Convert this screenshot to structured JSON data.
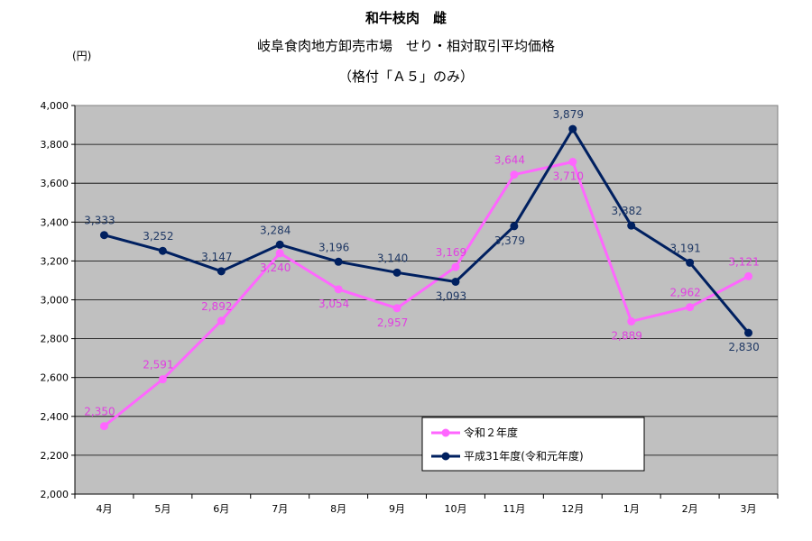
{
  "header": {
    "title": "和牛枝肉　雌",
    "subtitle1": "岐阜食肉地方卸売市場　せり・相対取引平均価格",
    "subtitle2": "（格付「Ａ５」のみ）",
    "yunit": "(円)"
  },
  "colors": {
    "plot_bg": "#c0c0c0",
    "series_r2": "#ff66ff",
    "series_h31": "#002060",
    "r2_label": "#e040e0",
    "h31_label": "#1f3864"
  },
  "chart_data": {
    "type": "line",
    "title": "和牛枝肉　雌",
    "ylabel": "(円)",
    "ylim": [
      2000,
      4000
    ],
    "ystep": 200,
    "grid": true,
    "legend_position": "bottom-right",
    "categories": [
      "4月",
      "5月",
      "6月",
      "7月",
      "8月",
      "9月",
      "10月",
      "11月",
      "12月",
      "1月",
      "2月",
      "3月"
    ],
    "yticks": [
      "2,000",
      "2,200",
      "2,400",
      "2,600",
      "2,800",
      "3,000",
      "3,200",
      "3,400",
      "3,600",
      "3,800",
      "4,000"
    ],
    "series": [
      {
        "name": "令和２年度",
        "values": [
          2350,
          2591,
          2892,
          3240,
          3054,
          2957,
          3169,
          3644,
          3710,
          2889,
          2962,
          3121
        ],
        "labels": [
          "2,350",
          "2,591",
          "2,892",
          "3,240",
          "3,054",
          "2,957",
          "3,169",
          "3,644",
          "3,710",
          "2,889",
          "2,962",
          "3,121"
        ]
      },
      {
        "name": "平成31年度(令和元年度)",
        "values": [
          3333,
          3252,
          3147,
          3284,
          3196,
          3140,
          3093,
          3379,
          3879,
          3382,
          3191,
          2830
        ],
        "labels": [
          "3,333",
          "3,252",
          "3,147",
          "3,284",
          "3,196",
          "3,140",
          "3,093",
          "3,379",
          "3,879",
          "3,382",
          "3,191",
          "2,830"
        ]
      }
    ]
  }
}
